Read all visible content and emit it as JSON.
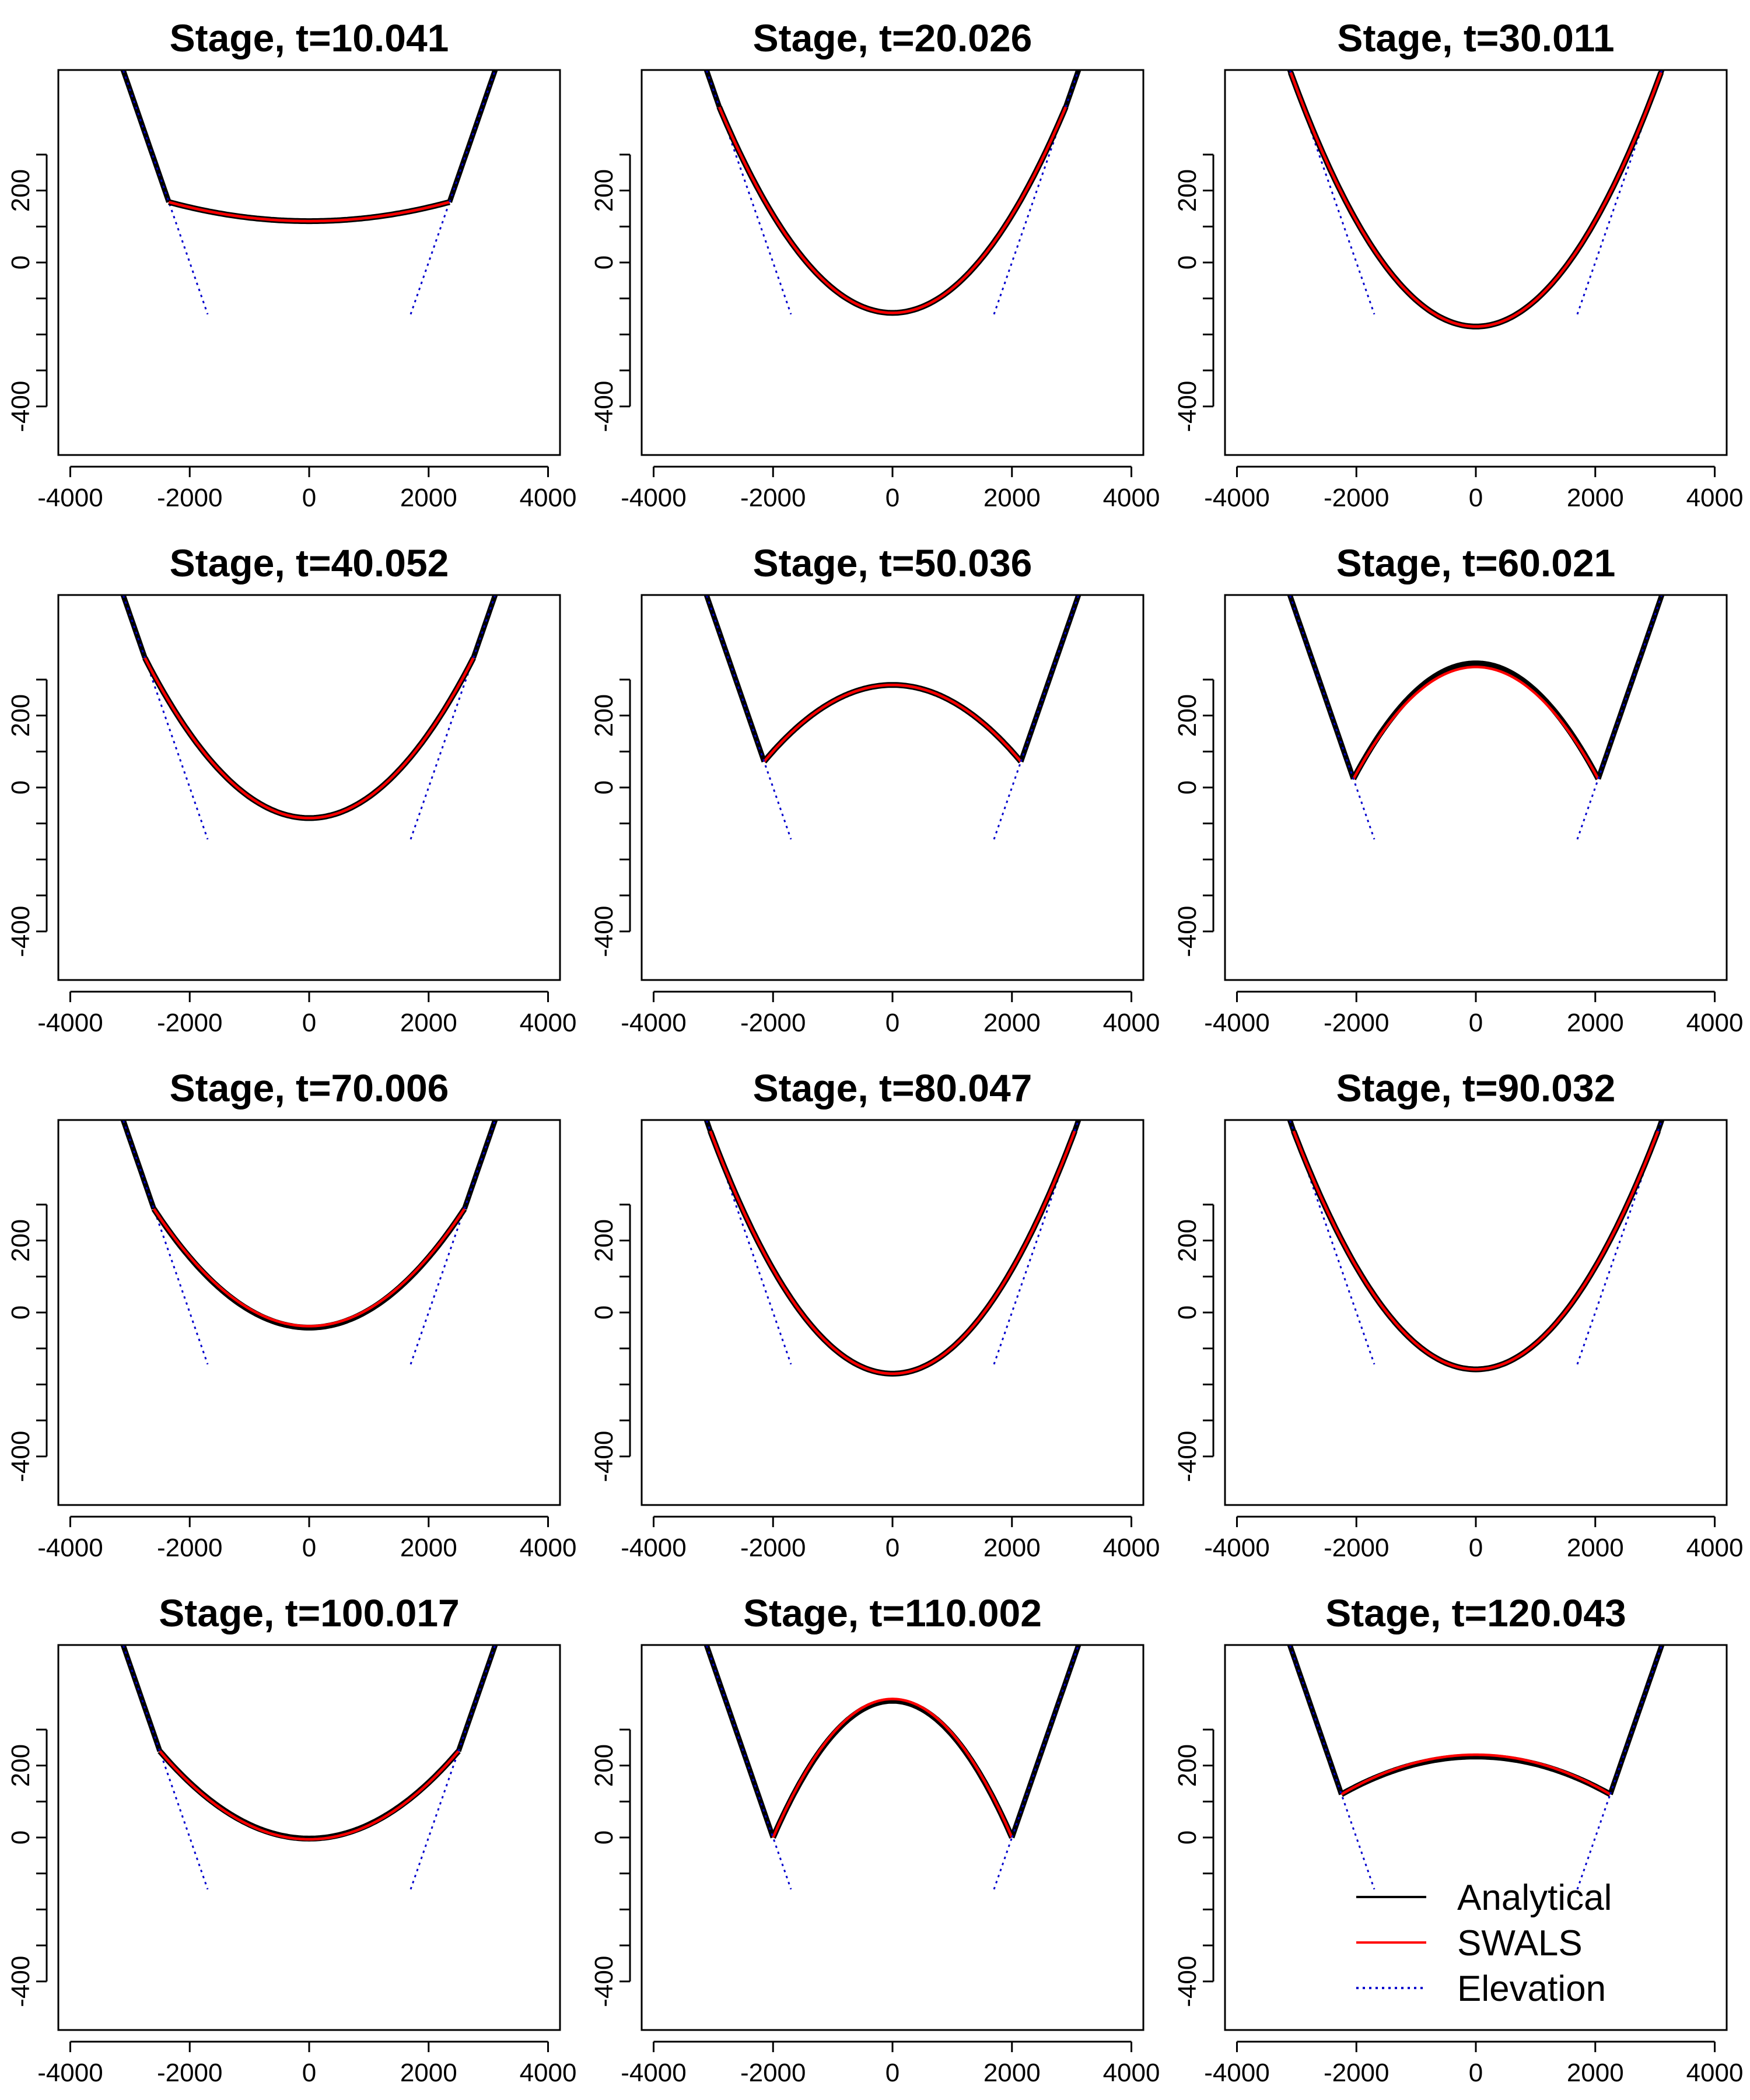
{
  "chart_data": [
    {
      "type": "line",
      "title": "Stage, t=10.041",
      "stage_level": 115,
      "wet_half_width": 2350
    },
    {
      "type": "line",
      "title": "Stage, t=20.026",
      "stage_level": -140,
      "wet_half_width": 2900
    },
    {
      "type": "line",
      "title": "Stage, t=30.011",
      "stage_level": -178,
      "wet_half_width": 3100
    },
    {
      "type": "line",
      "title": "Stage, t=40.052",
      "stage_level": -85,
      "wet_half_width": 2750
    },
    {
      "type": "line",
      "title": "Stage, t=50.036",
      "stage_level": 285,
      "wet_half_width": 2150
    },
    {
      "type": "line",
      "title": "Stage, t=60.021",
      "stage_level": 345,
      "swals_stage_level": 335,
      "wet_half_width": 2050
    },
    {
      "type": "line",
      "title": "Stage, t=70.006",
      "stage_level": -42,
      "swals_stage_level": -38,
      "wet_half_width": 2600
    },
    {
      "type": "line",
      "title": "Stage, t=80.047",
      "stage_level": -170,
      "wet_half_width": 3050
    },
    {
      "type": "line",
      "title": "Stage, t=90.032",
      "stage_level": -158,
      "wet_half_width": 3050
    },
    {
      "type": "line",
      "title": "Stage, t=100.017",
      "stage_level": -3,
      "swals_stage_level": -5,
      "wet_half_width": 2500
    },
    {
      "type": "line",
      "title": "Stage, t=110.002",
      "stage_level": 380,
      "swals_stage_level": 385,
      "wet_half_width": 2000
    },
    {
      "type": "line",
      "title": "Stage, t=120.043",
      "stage_level": 225,
      "swals_stage_level": 230,
      "wet_half_width": 2250
    }
  ],
  "axes": {
    "xlim": [
      -4200,
      4200
    ],
    "ylim": [
      -535,
      535
    ],
    "x_ticks": [
      -4000,
      -2000,
      0,
      2000,
      4000
    ],
    "y_ticks": [
      -400,
      0,
      200
    ],
    "y_minor_ticks": [
      -300,
      -200,
      -100,
      100,
      300
    ]
  },
  "elevation": {
    "description": "inclined walls crossing z=0 at x=+/-2000",
    "zero_crossing": 2000,
    "gradient_per_unit": 0.48
  },
  "legend": {
    "position": "bottom-right of last panel",
    "entries": [
      {
        "label": "Analytical",
        "color": "#000000",
        "style": "solid"
      },
      {
        "label": "SWALS",
        "color": "#ff0000",
        "style": "solid"
      },
      {
        "label": "Elevation",
        "color": "#0000cc",
        "style": "dotted"
      }
    ]
  },
  "colors": {
    "analytical": "#000000",
    "swals": "#ff0000",
    "elevation": "#0000cc"
  }
}
